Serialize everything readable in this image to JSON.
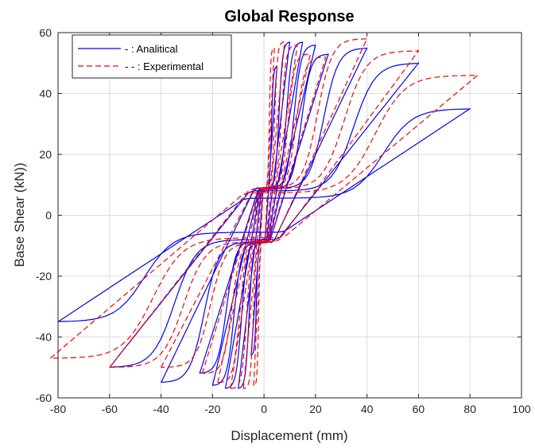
{
  "chart_data": {
    "type": "line",
    "title": "Global Response",
    "xlabel": "Displacement (mm)",
    "ylabel": "Base Shear (kN))",
    "xlim": [
      -80,
      100
    ],
    "ylim": [
      -60,
      60
    ],
    "xticks": [
      -80,
      -60,
      -40,
      -20,
      0,
      20,
      40,
      60,
      80,
      100
    ],
    "yticks": [
      -60,
      -40,
      -20,
      0,
      20,
      40,
      60
    ],
    "grid": true,
    "legend_position": "top-left",
    "series": [
      {
        "name": "- : Analitical",
        "color": "#0000ff",
        "style": "solid",
        "loops": [
          {
            "dmax": 5,
            "fmax": 49,
            "fmin": -46
          },
          {
            "dmax": 10,
            "fmax": 57,
            "fmin": -57
          },
          {
            "dmax": 15,
            "fmax": 57,
            "fmin": -57
          },
          {
            "dmax": 20,
            "fmax": 56,
            "fmin": -56
          },
          {
            "dmax": 25,
            "fmax": 53,
            "fmin": -52
          },
          {
            "dmax": 40,
            "fmax": 55,
            "fmin": -55
          },
          {
            "dmax": 60,
            "fmax": 50,
            "fmin": -50
          },
          {
            "dmax": 80,
            "fmax": 35,
            "fmin": -35
          }
        ]
      },
      {
        "name": "- - : Experimental",
        "color": "#ff0000",
        "style": "dashed",
        "loops": [
          {
            "dmax": 4,
            "fmax": 55,
            "fmin": -56
          },
          {
            "dmax": 8,
            "fmax": 57,
            "fmin": -57
          },
          {
            "dmax": 13,
            "fmax": 56,
            "fmin": -57
          },
          {
            "dmax": 18,
            "fmax": 53,
            "fmin": -55
          },
          {
            "dmax": 24,
            "fmax": 52,
            "fmin": -52
          },
          {
            "dmax": 40,
            "fmax": 58,
            "fmin": -50
          },
          {
            "dmax": 60,
            "fmax": 54,
            "fmin": -50
          },
          {
            "dmax": 83,
            "fmax": 46,
            "fmin": -47
          }
        ]
      }
    ]
  }
}
